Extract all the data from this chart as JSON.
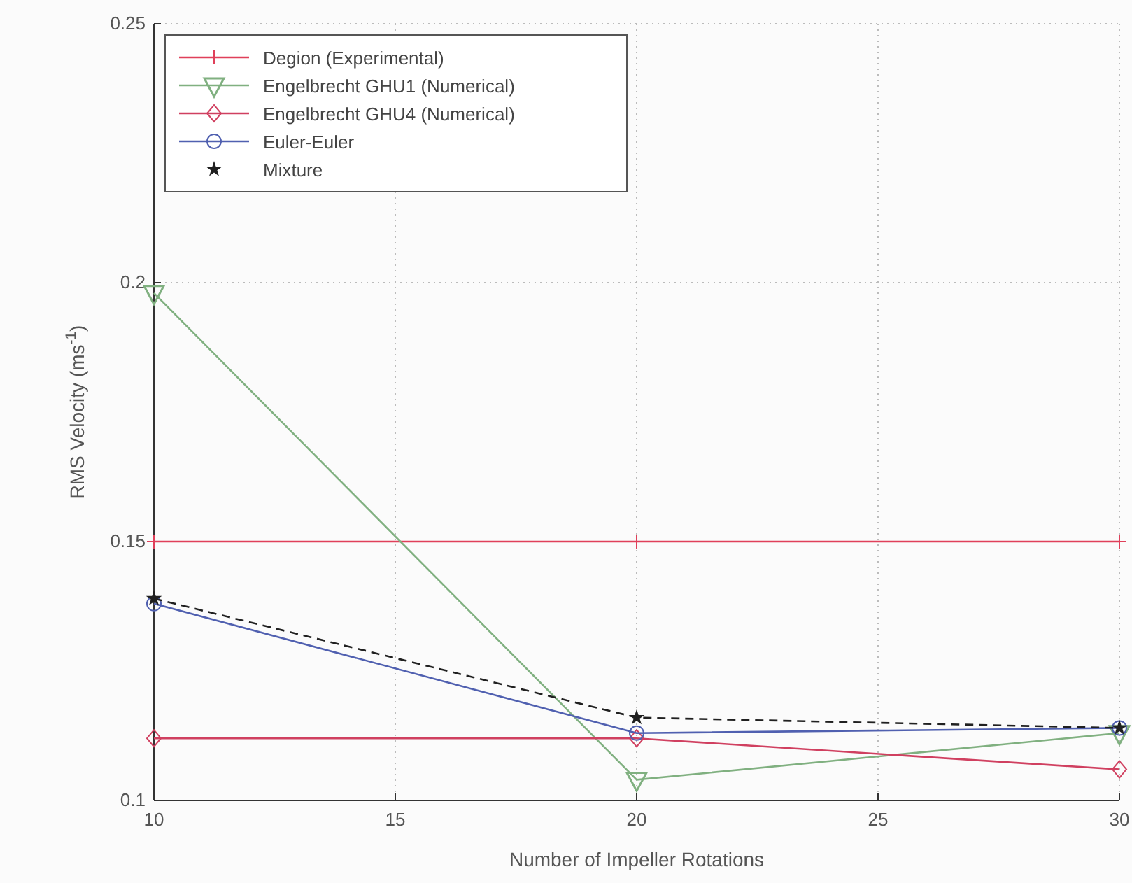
{
  "chart_data": {
    "type": "line",
    "xlabel": "Number of Impeller Rotations",
    "ylabel": "RMS Velocity (ms$^{-1}$)",
    "x": [
      10,
      20,
      30
    ],
    "xlim": [
      10,
      30
    ],
    "xticks": [
      10,
      15,
      20,
      25,
      30
    ],
    "ylim": [
      0.1,
      0.25
    ],
    "yticks": [
      {
        "value": 0.1,
        "label": "0.1"
      },
      {
        "value": 0.15,
        "label": "0.15"
      },
      {
        "value": 0.2,
        "label": "0.2"
      },
      {
        "value": 0.25,
        "label": "0.25"
      }
    ],
    "grid": true,
    "legend": "top left",
    "series": [
      {
        "name": "Degion (Experimental)",
        "color": "#e0405a",
        "values": [
          0.15,
          0.15,
          0.15
        ],
        "marker": "cross",
        "line_style": "solid"
      },
      {
        "name": "Engelbrecht GHU1 (Numerical)",
        "color": "#80b080",
        "values": [
          0.198,
          0.104,
          0.113
        ],
        "marker": "triangle",
        "line_style": "solid"
      },
      {
        "name": "Engelbrecht GHU4 (Numerical)",
        "color": "#d04060",
        "values": [
          0.112,
          0.112,
          0.106
        ],
        "marker": "diamond",
        "line_style": "solid"
      },
      {
        "name": "Euler-Euler",
        "color": "#5060b0",
        "values": [
          0.138,
          0.113,
          0.114
        ],
        "marker": "circle",
        "line_style": "solid"
      },
      {
        "name": "Mixture",
        "color": "#202020",
        "values": [
          0.139,
          0.116,
          0.114
        ],
        "marker": "star",
        "line_style": "dashed"
      }
    ]
  }
}
